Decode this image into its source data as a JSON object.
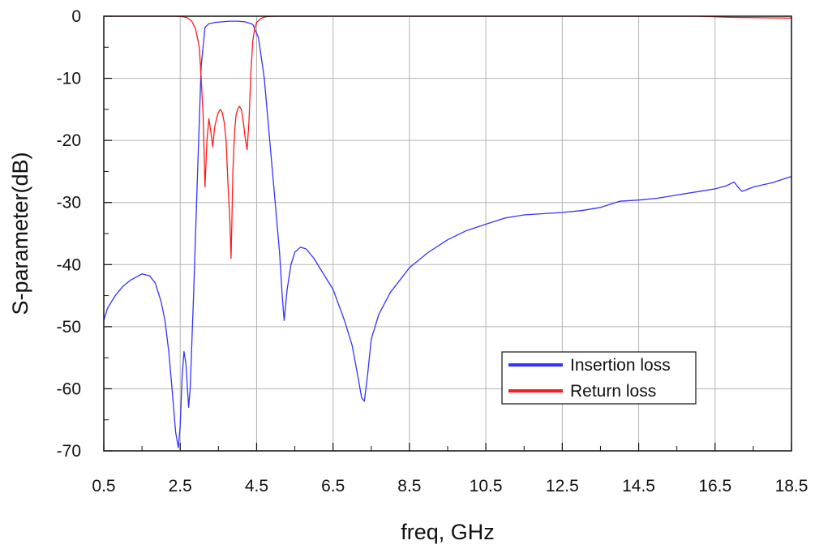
{
  "chart_data": {
    "type": "line",
    "title": "",
    "xlabel": "freq, GHz",
    "ylabel": "S-parameter(dB)",
    "xlim": [
      0.5,
      18.5
    ],
    "ylim": [
      -70,
      0
    ],
    "grid": true,
    "x_ticks": [
      0.5,
      2.5,
      4.5,
      6.5,
      8.5,
      10.5,
      12.5,
      14.5,
      16.5,
      18.5
    ],
    "x_tick_labels": [
      "0.5",
      "2.5",
      "4.5",
      "6.5",
      "8.5",
      "10.5",
      "12.5",
      "14.5",
      "16.5",
      "18.5"
    ],
    "y_ticks": [
      0,
      -10,
      -20,
      -30,
      -40,
      -50,
      -60,
      -70
    ],
    "y_tick_labels": [
      "0",
      "-10",
      "-20",
      "-30",
      "-40",
      "-50",
      "-60",
      "-70"
    ],
    "legend_position": "bottom-right",
    "series": [
      {
        "name": "Insertion loss",
        "color": "#3333ff",
        "x": [
          0.5,
          0.6,
          0.8,
          1.0,
          1.2,
          1.5,
          1.7,
          1.85,
          2.0,
          2.1,
          2.2,
          2.3,
          2.38,
          2.45,
          2.5,
          2.55,
          2.6,
          2.65,
          2.72,
          2.76,
          2.85,
          2.95,
          3.05,
          3.15,
          3.25,
          3.4,
          3.6,
          3.8,
          4.0,
          4.2,
          4.4,
          4.55,
          4.7,
          4.8,
          4.9,
          5.0,
          5.1,
          5.17,
          5.22,
          5.3,
          5.4,
          5.5,
          5.65,
          5.8,
          6.0,
          6.2,
          6.5,
          6.8,
          7.0,
          7.15,
          7.25,
          7.32,
          7.4,
          7.5,
          7.7,
          8.0,
          8.5,
          9.0,
          9.5,
          10.0,
          10.5,
          11.0,
          11.5,
          12.0,
          12.5,
          13.0,
          13.5,
          14.0,
          14.5,
          15.0,
          15.5,
          16.0,
          16.5,
          16.8,
          17.0,
          17.1,
          17.2,
          17.3,
          17.5,
          18.0,
          18.5
        ],
        "values": [
          -49,
          -47,
          -45,
          -43.5,
          -42.5,
          -41.5,
          -41.8,
          -43,
          -46,
          -49,
          -54,
          -61,
          -67,
          -69.5,
          -66,
          -58,
          -54,
          -56,
          -63,
          -60,
          -45,
          -26,
          -8,
          -1.8,
          -1.2,
          -1.0,
          -0.9,
          -0.8,
          -0.8,
          -0.9,
          -1.3,
          -3.5,
          -10,
          -17,
          -24,
          -31,
          -38,
          -45,
          -49,
          -44,
          -40,
          -38,
          -37.2,
          -37.5,
          -39,
          -41,
          -44,
          -49,
          -53,
          -58,
          -61.5,
          -62,
          -58,
          -52,
          -48,
          -44.5,
          -40.5,
          -38,
          -36,
          -34.5,
          -33.5,
          -32.5,
          -32,
          -31.8,
          -31.6,
          -31.3,
          -30.8,
          -29.8,
          -29.6,
          -29.3,
          -28.8,
          -28.3,
          -27.8,
          -27.3,
          -26.7,
          -27.5,
          -28.2,
          -28,
          -27.5,
          -26.8,
          -25.8
        ]
      },
      {
        "name": "Return loss",
        "color": "#ff1a1a",
        "x": [
          0.5,
          1.0,
          1.5,
          2.0,
          2.2,
          2.4,
          2.6,
          2.7,
          2.8,
          2.9,
          3.0,
          3.05,
          3.1,
          3.15,
          3.2,
          3.25,
          3.3,
          3.35,
          3.4,
          3.45,
          3.5,
          3.55,
          3.6,
          3.65,
          3.7,
          3.75,
          3.8,
          3.83,
          3.85,
          3.88,
          3.92,
          3.96,
          4.0,
          4.05,
          4.1,
          4.15,
          4.2,
          4.25,
          4.3,
          4.35,
          4.4,
          4.45,
          4.5,
          4.6,
          4.7,
          4.8,
          5.0,
          6.0,
          8.0,
          10.0,
          12.0,
          14.0,
          16.0,
          17.0,
          18.5
        ],
        "values": [
          0,
          0,
          0,
          0,
          0,
          0,
          -0.1,
          -0.3,
          -0.8,
          -2,
          -5,
          -10,
          -16,
          -27.5,
          -20,
          -16.5,
          -18.5,
          -21,
          -18,
          -16.5,
          -15.5,
          -15,
          -15.5,
          -17,
          -20,
          -27,
          -33,
          -39,
          -34,
          -25,
          -19,
          -16,
          -15,
          -14.5,
          -15,
          -17,
          -19.5,
          -21.5,
          -17,
          -9,
          -4,
          -2,
          -1,
          -0.4,
          -0.15,
          -0.05,
          0,
          0,
          0,
          0,
          0,
          0,
          0,
          -0.2,
          -0.3
        ]
      }
    ]
  }
}
